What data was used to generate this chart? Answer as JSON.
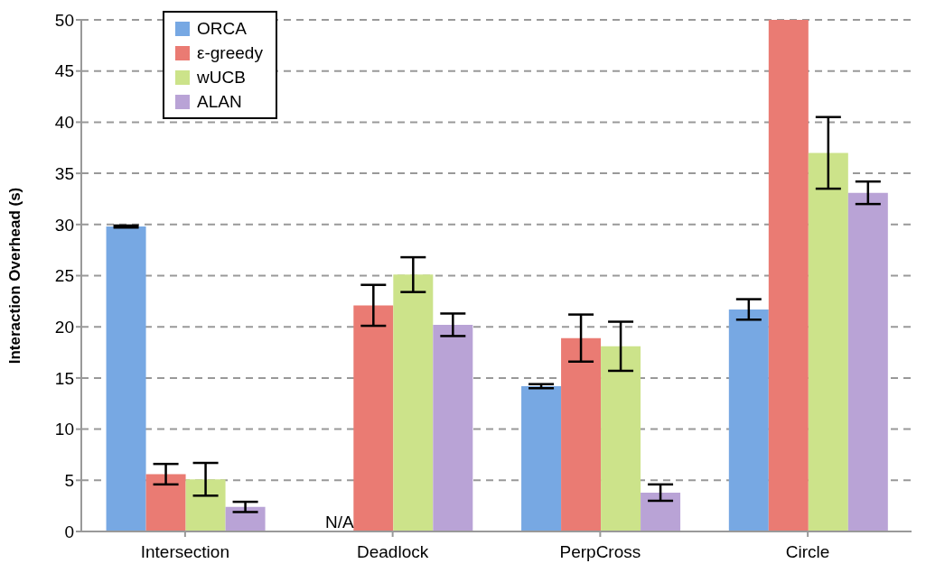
{
  "chart_data": {
    "type": "bar",
    "ylabel": "Interaction Overhead (s)",
    "categories": [
      "Intersection",
      "Deadlock",
      "PerpCross",
      "Circle"
    ],
    "series": [
      {
        "name": "ORCA",
        "color": "#77a8e3",
        "values": [
          29.8,
          null,
          14.2,
          21.7
        ],
        "errors": [
          0.1,
          null,
          0.2,
          1.0
        ]
      },
      {
        "name": "ε-greedy",
        "color": "#ea7b73",
        "values": [
          5.6,
          22.1,
          18.9,
          50
        ],
        "errors": [
          1.0,
          2.0,
          2.3,
          null
        ]
      },
      {
        "name": "wUCB",
        "color": "#cce38a",
        "values": [
          5.1,
          25.1,
          18.1,
          37.0
        ],
        "errors": [
          1.6,
          1.7,
          2.4,
          3.5
        ]
      },
      {
        "name": "ALAN",
        "color": "#b9a3d6",
        "values": [
          2.4,
          20.2,
          3.8,
          33.1
        ],
        "errors": [
          0.5,
          1.1,
          0.8,
          1.1
        ]
      }
    ],
    "ylim": [
      0,
      50
    ],
    "yticks": [
      0,
      5,
      10,
      15,
      20,
      25,
      30,
      35,
      40,
      45,
      50
    ],
    "grid": "y",
    "legend": "top left",
    "annotations": [
      "N/A"
    ]
  }
}
